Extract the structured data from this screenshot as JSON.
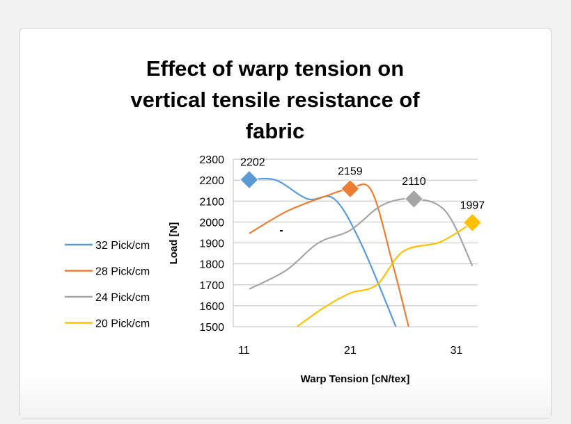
{
  "chart_data": {
    "type": "line",
    "title_lines": [
      "Effect of warp tension on",
      "vertical tensile resistance of",
      "fabric"
    ],
    "xlabel": "Warp Tension [cN/tex]",
    "ylabel": "Load [N]",
    "xlim": [
      10,
      33
    ],
    "ylim": [
      1500,
      2300
    ],
    "xticks": [
      11,
      21,
      31
    ],
    "yticks": [
      1500,
      1600,
      1700,
      1800,
      1900,
      2000,
      2100,
      2200,
      2300
    ],
    "grid": true,
    "legend_position": "left",
    "stray_mark": "-",
    "series": [
      {
        "name": "32 Pick/cm",
        "color": "#5b9bd5",
        "points": [
          [
            11.5,
            2202
          ],
          [
            14.0,
            2200
          ],
          [
            17.0,
            2110
          ],
          [
            19.5,
            2110
          ],
          [
            22.0,
            1900
          ],
          [
            25.3,
            1500
          ]
        ],
        "marker": {
          "x": 11.5,
          "y": 2202,
          "label": "2202"
        }
      },
      {
        "name": "28 Pick/cm",
        "color": "#ed7d31",
        "points": [
          [
            11.5,
            1945
          ],
          [
            15.0,
            2050
          ],
          [
            18.5,
            2120
          ],
          [
            21.0,
            2159
          ],
          [
            23.0,
            2150
          ],
          [
            25.0,
            1800
          ],
          [
            26.5,
            1500
          ]
        ],
        "marker": {
          "x": 21.0,
          "y": 2159,
          "label": "2159"
        }
      },
      {
        "name": "24 Pick/cm",
        "color": "#a5a5a5",
        "points": [
          [
            11.5,
            1680
          ],
          [
            15.0,
            1770
          ],
          [
            18.0,
            1900
          ],
          [
            21.0,
            1960
          ],
          [
            24.0,
            2080
          ],
          [
            27.0,
            2110
          ],
          [
            30.0,
            2050
          ],
          [
            32.5,
            1790
          ]
        ],
        "marker": {
          "x": 27.0,
          "y": 2110,
          "label": "2110"
        }
      },
      {
        "name": "20 Pick/cm",
        "color": "#ffc000",
        "points": [
          [
            16.0,
            1500
          ],
          [
            18.5,
            1590
          ],
          [
            21.0,
            1660
          ],
          [
            23.5,
            1700
          ],
          [
            26.0,
            1860
          ],
          [
            29.5,
            1905
          ],
          [
            32.5,
            1997
          ]
        ],
        "marker": {
          "x": 32.5,
          "y": 1997,
          "label": "1997"
        }
      }
    ]
  }
}
